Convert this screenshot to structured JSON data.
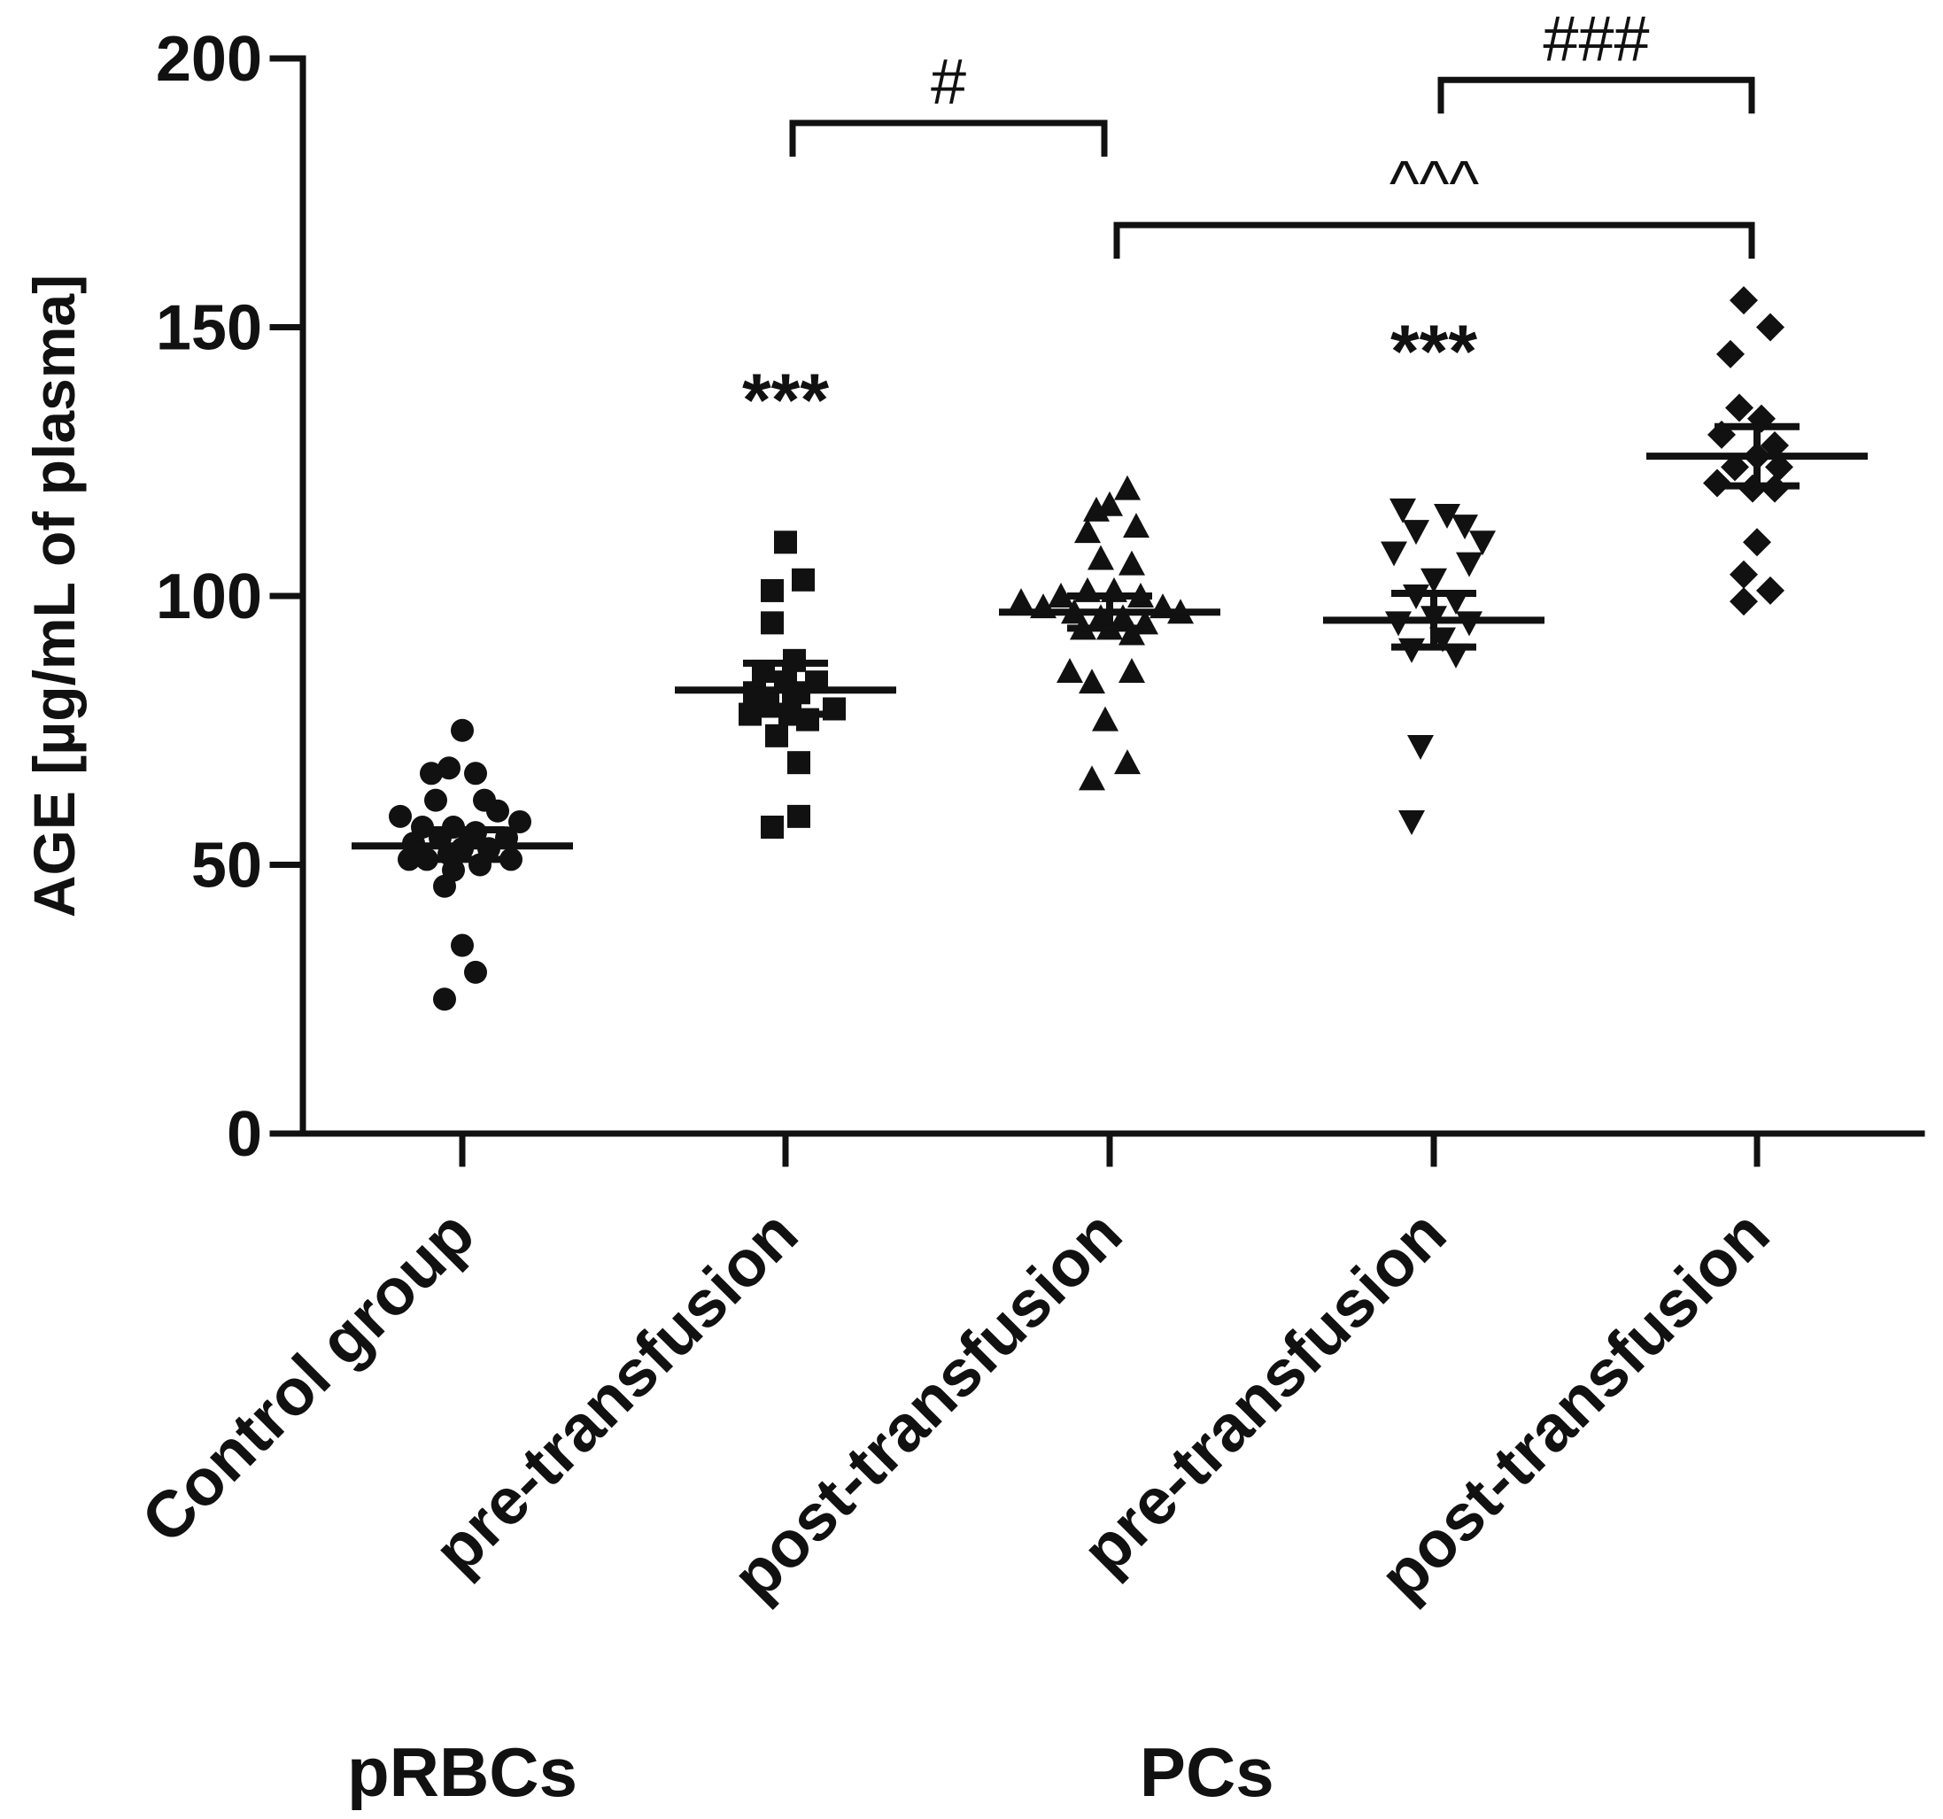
{
  "chart_data": {
    "type": "scatter",
    "title": "",
    "xlabel": "",
    "ylabel": "AGE [µg/mL of plasma]",
    "ylim": [
      0,
      200
    ],
    "yticks": [
      0,
      50,
      100,
      150,
      200
    ],
    "categories": [
      "Control group",
      "pre-transfusion",
      "post-transfusion",
      "pre-transfusion",
      "post-transfusion"
    ],
    "group_labels": [
      {
        "label": "pRBCs",
        "category_index": 0
      },
      {
        "label": "PCs",
        "category_index": 2.3
      }
    ],
    "series": [
      {
        "name": "Control group",
        "marker": "circle",
        "mean": 53.5,
        "sem": [
          51,
          56.5
        ],
        "points": [
          {
            "dx": 0,
            "y": 75
          },
          {
            "dx": -35,
            "y": 67
          },
          {
            "dx": -15,
            "y": 68
          },
          {
            "dx": 15,
            "y": 67
          },
          {
            "dx": -30,
            "y": 62
          },
          {
            "dx": 25,
            "y": 62
          },
          {
            "dx": 40,
            "y": 60
          },
          {
            "dx": -70,
            "y": 59
          },
          {
            "dx": 65,
            "y": 58
          },
          {
            "dx": -45,
            "y": 57
          },
          {
            "dx": -10,
            "y": 57
          },
          {
            "dx": 15,
            "y": 56
          },
          {
            "dx": 50,
            "y": 55
          },
          {
            "dx": -25,
            "y": 55
          },
          {
            "dx": -55,
            "y": 54
          },
          {
            "dx": 0,
            "y": 53
          },
          {
            "dx": 30,
            "y": 53
          },
          {
            "dx": -15,
            "y": 52
          },
          {
            "dx": -60,
            "y": 51
          },
          {
            "dx": -40,
            "y": 51
          },
          {
            "dx": 55,
            "y": 51
          },
          {
            "dx": 20,
            "y": 50
          },
          {
            "dx": -10,
            "y": 49
          },
          {
            "dx": -20,
            "y": 46
          },
          {
            "dx": 0,
            "y": 35
          },
          {
            "dx": 15,
            "y": 30
          },
          {
            "dx": -20,
            "y": 25
          }
        ]
      },
      {
        "name": "pRBCs pre-transfusion",
        "marker": "square",
        "mean": 82.5,
        "sem": [
          78,
          87.5
        ],
        "points": [
          {
            "dx": 0,
            "y": 110
          },
          {
            "dx": 20,
            "y": 103
          },
          {
            "dx": -15,
            "y": 101
          },
          {
            "dx": -15,
            "y": 95
          },
          {
            "dx": 10,
            "y": 88
          },
          {
            "dx": -25,
            "y": 86
          },
          {
            "dx": 0,
            "y": 84
          },
          {
            "dx": 35,
            "y": 84
          },
          {
            "dx": -35,
            "y": 82
          },
          {
            "dx": 15,
            "y": 82
          },
          {
            "dx": -20,
            "y": 80
          },
          {
            "dx": 55,
            "y": 79
          },
          {
            "dx": 5,
            "y": 78
          },
          {
            "dx": -40,
            "y": 78
          },
          {
            "dx": 25,
            "y": 77
          },
          {
            "dx": -10,
            "y": 74
          },
          {
            "dx": 15,
            "y": 69
          },
          {
            "dx": -15,
            "y": 57
          },
          {
            "dx": 15,
            "y": 59
          }
        ]
      },
      {
        "name": "pRBCs post-transfusion",
        "marker": "triangle-up",
        "mean": 97,
        "sem": [
          94,
          100
        ],
        "points": [
          {
            "dx": 20,
            "y": 120
          },
          {
            "dx": -15,
            "y": 116
          },
          {
            "dx": 0,
            "y": 117
          },
          {
            "dx": 30,
            "y": 113
          },
          {
            "dx": -25,
            "y": 112
          },
          {
            "dx": -10,
            "y": 107
          },
          {
            "dx": 25,
            "y": 106
          },
          {
            "dx": -25,
            "y": 101
          },
          {
            "dx": 5,
            "y": 101
          },
          {
            "dx": 35,
            "y": 100
          },
          {
            "dx": -55,
            "y": 100
          },
          {
            "dx": -100,
            "y": 99
          },
          {
            "dx": -75,
            "y": 98
          },
          {
            "dx": 60,
            "y": 98
          },
          {
            "dx": 80,
            "y": 97
          },
          {
            "dx": -40,
            "y": 97
          },
          {
            "dx": -10,
            "y": 96
          },
          {
            "dx": 15,
            "y": 96
          },
          {
            "dx": 40,
            "y": 95
          },
          {
            "dx": -30,
            "y": 94
          },
          {
            "dx": 0,
            "y": 94
          },
          {
            "dx": 25,
            "y": 93
          },
          {
            "dx": -45,
            "y": 86
          },
          {
            "dx": 25,
            "y": 86
          },
          {
            "dx": -20,
            "y": 84
          },
          {
            "dx": -5,
            "y": 77
          },
          {
            "dx": 20,
            "y": 69
          },
          {
            "dx": -20,
            "y": 66
          }
        ]
      },
      {
        "name": "PCs pre-transfusion",
        "marker": "triangle-down",
        "mean": 95.5,
        "sem": [
          90.5,
          100.5
        ],
        "points": [
          {
            "dx": -35,
            "y": 116
          },
          {
            "dx": 15,
            "y": 115
          },
          {
            "dx": 35,
            "y": 113
          },
          {
            "dx": 55,
            "y": 110
          },
          {
            "dx": -20,
            "y": 112
          },
          {
            "dx": -45,
            "y": 108
          },
          {
            "dx": 40,
            "y": 106
          },
          {
            "dx": 0,
            "y": 103
          },
          {
            "dx": -20,
            "y": 100
          },
          {
            "dx": 25,
            "y": 99
          },
          {
            "dx": 0,
            "y": 96
          },
          {
            "dx": -40,
            "y": 95
          },
          {
            "dx": 40,
            "y": 95
          },
          {
            "dx": 10,
            "y": 92
          },
          {
            "dx": -25,
            "y": 90
          },
          {
            "dx": 25,
            "y": 89
          },
          {
            "dx": -15,
            "y": 72
          },
          {
            "dx": -25,
            "y": 58
          }
        ]
      },
      {
        "name": "PCs post-transfusion",
        "marker": "diamond",
        "mean": 126,
        "sem": [
          120.5,
          131.5
        ],
        "points": [
          {
            "dx": -15,
            "y": 155
          },
          {
            "dx": 15,
            "y": 150
          },
          {
            "dx": -30,
            "y": 145
          },
          {
            "dx": -20,
            "y": 135
          },
          {
            "dx": 5,
            "y": 133
          },
          {
            "dx": -40,
            "y": 130
          },
          {
            "dx": 20,
            "y": 128
          },
          {
            "dx": 0,
            "y": 126
          },
          {
            "dx": -25,
            "y": 124
          },
          {
            "dx": 25,
            "y": 124
          },
          {
            "dx": -45,
            "y": 121
          },
          {
            "dx": -5,
            "y": 120
          },
          {
            "dx": 20,
            "y": 120
          },
          {
            "dx": 0,
            "y": 110
          },
          {
            "dx": -15,
            "y": 104
          },
          {
            "dx": -15,
            "y": 99
          },
          {
            "dx": 15,
            "y": 101
          }
        ]
      }
    ],
    "annotations": [
      {
        "type": "stars",
        "text": "***",
        "category_index": 1,
        "y": 138
      },
      {
        "type": "stars",
        "text": "***",
        "category_index": 3,
        "y": 147
      },
      {
        "type": "bracket",
        "text": "#",
        "from": 1,
        "to": 2,
        "y": 188
      },
      {
        "type": "bracket",
        "text": "###",
        "from": 3,
        "to": 4,
        "y": 196
      },
      {
        "type": "bracket",
        "text": "^^^",
        "from": 2,
        "to": 4,
        "y": 169
      }
    ]
  }
}
